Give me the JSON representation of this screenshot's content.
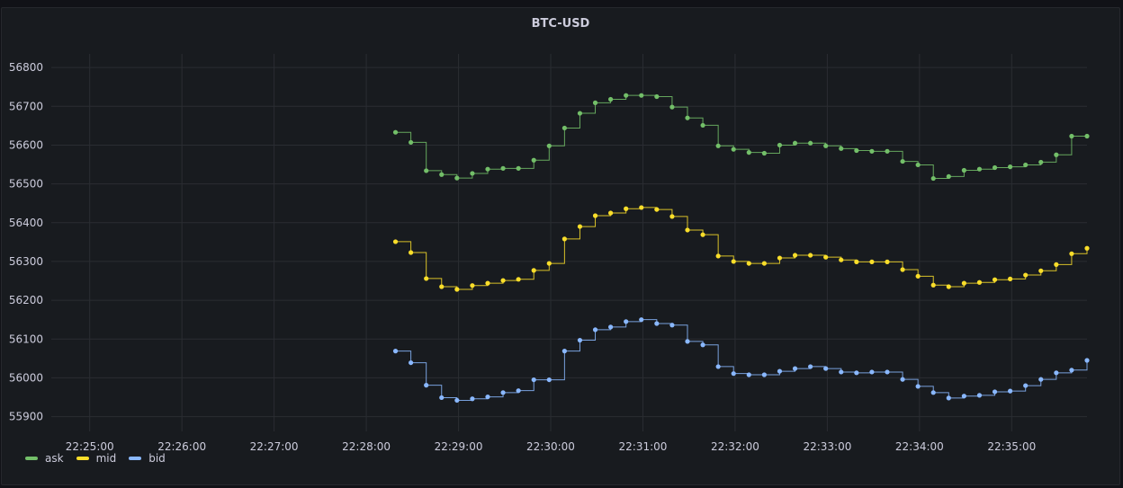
{
  "chart_data": {
    "type": "line",
    "interpolation": "step-after",
    "title": "BTC-USD",
    "xlabel": "",
    "ylabel": "",
    "xlim": [
      "22:24:35",
      "22:35:49"
    ],
    "ylim": [
      55862,
      56835
    ],
    "grid": true,
    "legend_placement": "bottom-left",
    "x_ticks": [
      "22:25:00",
      "22:26:00",
      "22:27:00",
      "22:28:00",
      "22:29:00",
      "22:30:00",
      "22:31:00",
      "22:32:00",
      "22:33:00",
      "22:34:00",
      "22:35:00"
    ],
    "y_ticks": [
      56800,
      56700,
      56600,
      56500,
      56400,
      56300,
      56200,
      56100,
      56000,
      55900
    ],
    "x": [
      "22:28:19",
      "22:28:29",
      "22:28:39",
      "22:28:49",
      "22:28:59",
      "22:29:09",
      "22:29:19",
      "22:29:29",
      "22:29:39",
      "22:29:49",
      "22:29:59",
      "22:30:09",
      "22:30:19",
      "22:30:29",
      "22:30:39",
      "22:30:49",
      "22:30:59",
      "22:31:09",
      "22:31:19",
      "22:31:29",
      "22:31:39",
      "22:31:49",
      "22:31:59",
      "22:32:09",
      "22:32:19",
      "22:32:29",
      "22:32:39",
      "22:32:49",
      "22:32:59",
      "22:33:09",
      "22:33:19",
      "22:33:29",
      "22:33:39",
      "22:33:49",
      "22:33:59",
      "22:34:09",
      "22:34:19",
      "22:34:29",
      "22:34:39",
      "22:34:49",
      "22:34:59",
      "22:35:09",
      "22:35:19",
      "22:35:29",
      "22:35:39",
      "22:35:49"
    ],
    "series": [
      {
        "name": "ask",
        "color": "#73bf69",
        "values": [
          56633,
          56607,
          56534,
          56524,
          56515,
          56527,
          56538,
          56540,
          56540,
          56561,
          56598,
          56644,
          56682,
          56709,
          56718,
          56728,
          56728,
          56725,
          56698,
          56670,
          56651,
          56598,
          56589,
          56581,
          56579,
          56600,
          56605,
          56605,
          56598,
          56591,
          56586,
          56584,
          56584,
          56558,
          56549,
          56514,
          56519,
          56535,
          56538,
          56542,
          56544,
          56549,
          56556,
          56575,
          56623,
          56623
        ]
      },
      {
        "name": "mid",
        "color": "#fade2a",
        "values": [
          56351,
          56323,
          56256,
          56235,
          56228,
          56238,
          56244,
          56251,
          56254,
          56277,
          56295,
          56358,
          56390,
          56418,
          56425,
          56436,
          56439,
          56434,
          56416,
          56381,
          56369,
          56314,
          56300,
          56295,
          56295,
          56309,
          56316,
          56316,
          56311,
          56304,
          56299,
          56299,
          56299,
          56279,
          56262,
          56239,
          56235,
          56244,
          56246,
          56253,
          56255,
          56265,
          56276,
          56292,
          56320,
          56334
        ]
      },
      {
        "name": "bid",
        "color": "#8ab8ff",
        "values": [
          56069,
          56039,
          55981,
          55949,
          55942,
          55946,
          55951,
          55962,
          55967,
          55995,
          55995,
          56069,
          56097,
          56124,
          56131,
          56145,
          56150,
          56140,
          56136,
          56094,
          56085,
          56029,
          56011,
          56008,
          56008,
          56017,
          56024,
          56029,
          56024,
          56015,
          56013,
          56015,
          56015,
          55996,
          55978,
          55962,
          55948,
          55953,
          55955,
          55964,
          55966,
          55980,
          55996,
          56013,
          56020,
          56045
        ]
      }
    ]
  }
}
